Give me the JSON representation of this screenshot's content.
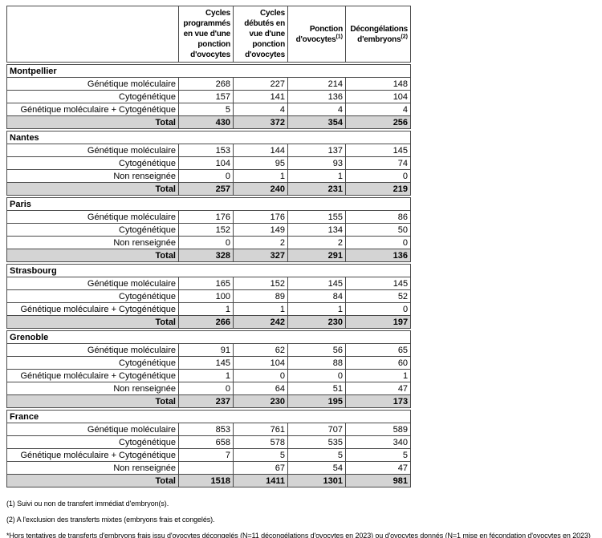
{
  "table": {
    "header": {
      "corner_label": "",
      "columns": [
        {
          "label": "Cycles programmés en vue d'une ponction d'ovocytes",
          "superscript": ""
        },
        {
          "label": "Cycles débutés en vue d'une ponction d'ovocytes",
          "superscript": ""
        },
        {
          "label": "Ponction d'ovocytes",
          "superscript": "(1)"
        },
        {
          "label": "Décongélations d'embryons",
          "superscript": "(2)"
        }
      ]
    },
    "sections": [
      {
        "city": "Montpellier",
        "rows": [
          {
            "label": "Génétique moléculaire",
            "values": [
              "268",
              "227",
              "214",
              "148"
            ],
            "total": false
          },
          {
            "label": "Cytogénétique",
            "values": [
              "157",
              "141",
              "136",
              "104"
            ],
            "total": false
          },
          {
            "label": "Génétique moléculaire + Cytogénétique",
            "values": [
              "5",
              "4",
              "4",
              "4"
            ],
            "total": false
          },
          {
            "label": "Total",
            "values": [
              "430",
              "372",
              "354",
              "256"
            ],
            "total": true
          }
        ]
      },
      {
        "city": "Nantes",
        "rows": [
          {
            "label": "Génétique moléculaire",
            "values": [
              "153",
              "144",
              "137",
              "145"
            ],
            "total": false
          },
          {
            "label": "Cytogénétique",
            "values": [
              "104",
              "95",
              "93",
              "74"
            ],
            "total": false
          },
          {
            "label": "Non renseignée",
            "values": [
              "0",
              "1",
              "1",
              "0"
            ],
            "total": false
          },
          {
            "label": "Total",
            "values": [
              "257",
              "240",
              "231",
              "219"
            ],
            "total": true
          }
        ]
      },
      {
        "city": "Paris",
        "rows": [
          {
            "label": "Génétique moléculaire",
            "values": [
              "176",
              "176",
              "155",
              "86"
            ],
            "total": false
          },
          {
            "label": "Cytogénétique",
            "values": [
              "152",
              "149",
              "134",
              "50"
            ],
            "total": false
          },
          {
            "label": "Non renseignée",
            "values": [
              "0",
              "2",
              "2",
              "0"
            ],
            "total": false
          },
          {
            "label": "Total",
            "values": [
              "328",
              "327",
              "291",
              "136"
            ],
            "total": true
          }
        ]
      },
      {
        "city": "Strasbourg",
        "rows": [
          {
            "label": "Génétique moléculaire",
            "values": [
              "165",
              "152",
              "145",
              "145"
            ],
            "total": false
          },
          {
            "label": "Cytogénétique",
            "values": [
              "100",
              "89",
              "84",
              "52"
            ],
            "total": false
          },
          {
            "label": "Génétique moléculaire + Cytogénétique",
            "values": [
              "1",
              "1",
              "1",
              "0"
            ],
            "total": false
          },
          {
            "label": "Total",
            "values": [
              "266",
              "242",
              "230",
              "197"
            ],
            "total": true
          }
        ]
      },
      {
        "city": "Grenoble",
        "rows": [
          {
            "label": "Génétique moléculaire",
            "values": [
              "91",
              "62",
              "56",
              "65"
            ],
            "total": false
          },
          {
            "label": "Cytogénétique",
            "values": [
              "145",
              "104",
              "88",
              "60"
            ],
            "total": false
          },
          {
            "label": "Génétique moléculaire + Cytogénétique",
            "values": [
              "1",
              "0",
              "0",
              "1"
            ],
            "total": false
          },
          {
            "label": "Non renseignée",
            "values": [
              "0",
              "64",
              "51",
              "47"
            ],
            "total": false
          },
          {
            "label": "Total",
            "values": [
              "237",
              "230",
              "195",
              "173"
            ],
            "total": true
          }
        ]
      },
      {
        "city": "France",
        "rows": [
          {
            "label": "Génétique moléculaire",
            "values": [
              "853",
              "761",
              "707",
              "589"
            ],
            "total": false
          },
          {
            "label": "Cytogénétique",
            "values": [
              "658",
              "578",
              "535",
              "340"
            ],
            "total": false
          },
          {
            "label": "Génétique moléculaire + Cytogénétique",
            "values": [
              "7",
              "5",
              "5",
              "5"
            ],
            "total": false
          },
          {
            "label": "Non renseignée",
            "values": [
              "",
              "67",
              "54",
              "47"
            ],
            "total": false
          },
          {
            "label": "Total",
            "values": [
              "1518",
              "1411",
              "1301",
              "981"
            ],
            "total": true
          }
        ]
      }
    ]
  },
  "footnotes": [
    "(1) Suivi ou non de transfert immédiat d'embryon(s).",
    "(2) A l'exclusion des transferts mixtes (embryons frais et congelés).",
    "*Hors tentatives de transferts d'embryons frais issu d'ovocytes décongelés (N=11 décongélations d'ovocytes en 2023) ou d'ovocytes donnés (N=1 mise en fécondation d'ovocytes en 2023)"
  ],
  "colors": {
    "total_row_bg": "#d4d4d4",
    "border": "#4a4a4a",
    "text": "#000000",
    "background": "#ffffff"
  }
}
